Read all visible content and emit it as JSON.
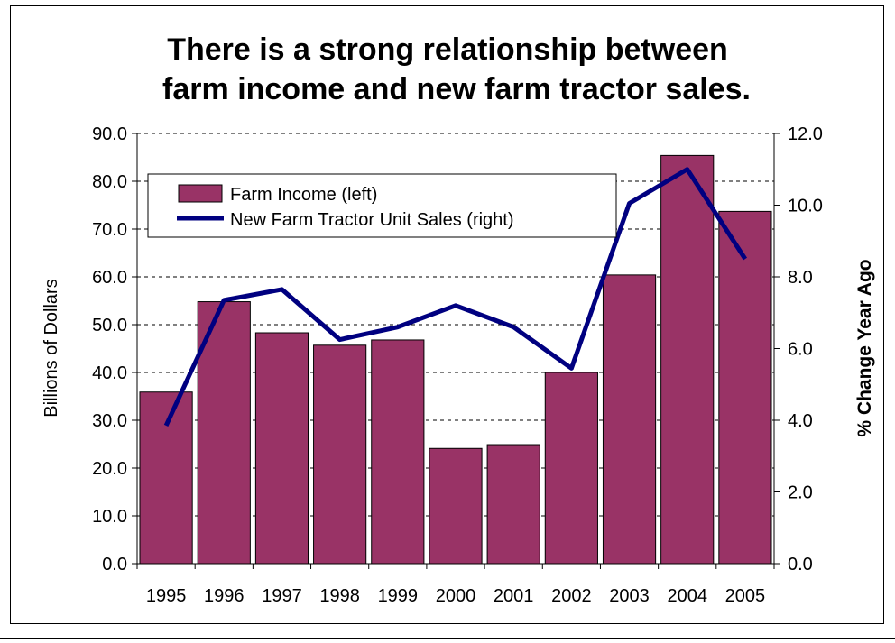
{
  "chart_data": {
    "type": "bar",
    "title_lines": [
      "There is a strong relationship between",
      "farm income and new farm tractor sales."
    ],
    "categories": [
      "1995",
      "1996",
      "1997",
      "1998",
      "1999",
      "2000",
      "2001",
      "2002",
      "2003",
      "2004",
      "2005"
    ],
    "series": [
      {
        "name": "Farm Income (left)",
        "type": "bar",
        "axis": "left",
        "color": "#993366",
        "values": [
          35.9,
          54.8,
          48.3,
          45.7,
          46.8,
          24.1,
          24.9,
          40.0,
          60.4,
          85.4,
          73.7
        ]
      },
      {
        "name": "New Farm Tractor Unit Sales (right)",
        "type": "line",
        "axis": "right",
        "color": "#000080",
        "values": [
          3.85,
          7.35,
          7.65,
          6.25,
          6.6,
          7.2,
          6.6,
          5.45,
          10.05,
          11.0,
          8.5
        ]
      }
    ],
    "ylabel": "Billions of Dollars",
    "ylabel_right": "% Change Year Ago",
    "ylim": [
      0,
      90
    ],
    "yticks": [
      "0.0",
      "10.0",
      "20.0",
      "30.0",
      "40.0",
      "50.0",
      "60.0",
      "70.0",
      "80.0",
      "90.0"
    ],
    "ylim_right": [
      0,
      12
    ],
    "yticks_right": [
      "0.0",
      "2.0",
      "4.0",
      "6.0",
      "8.0",
      "10.0",
      "12.0"
    ],
    "grid": "dashed horizontal",
    "legend_position": "top-left"
  }
}
